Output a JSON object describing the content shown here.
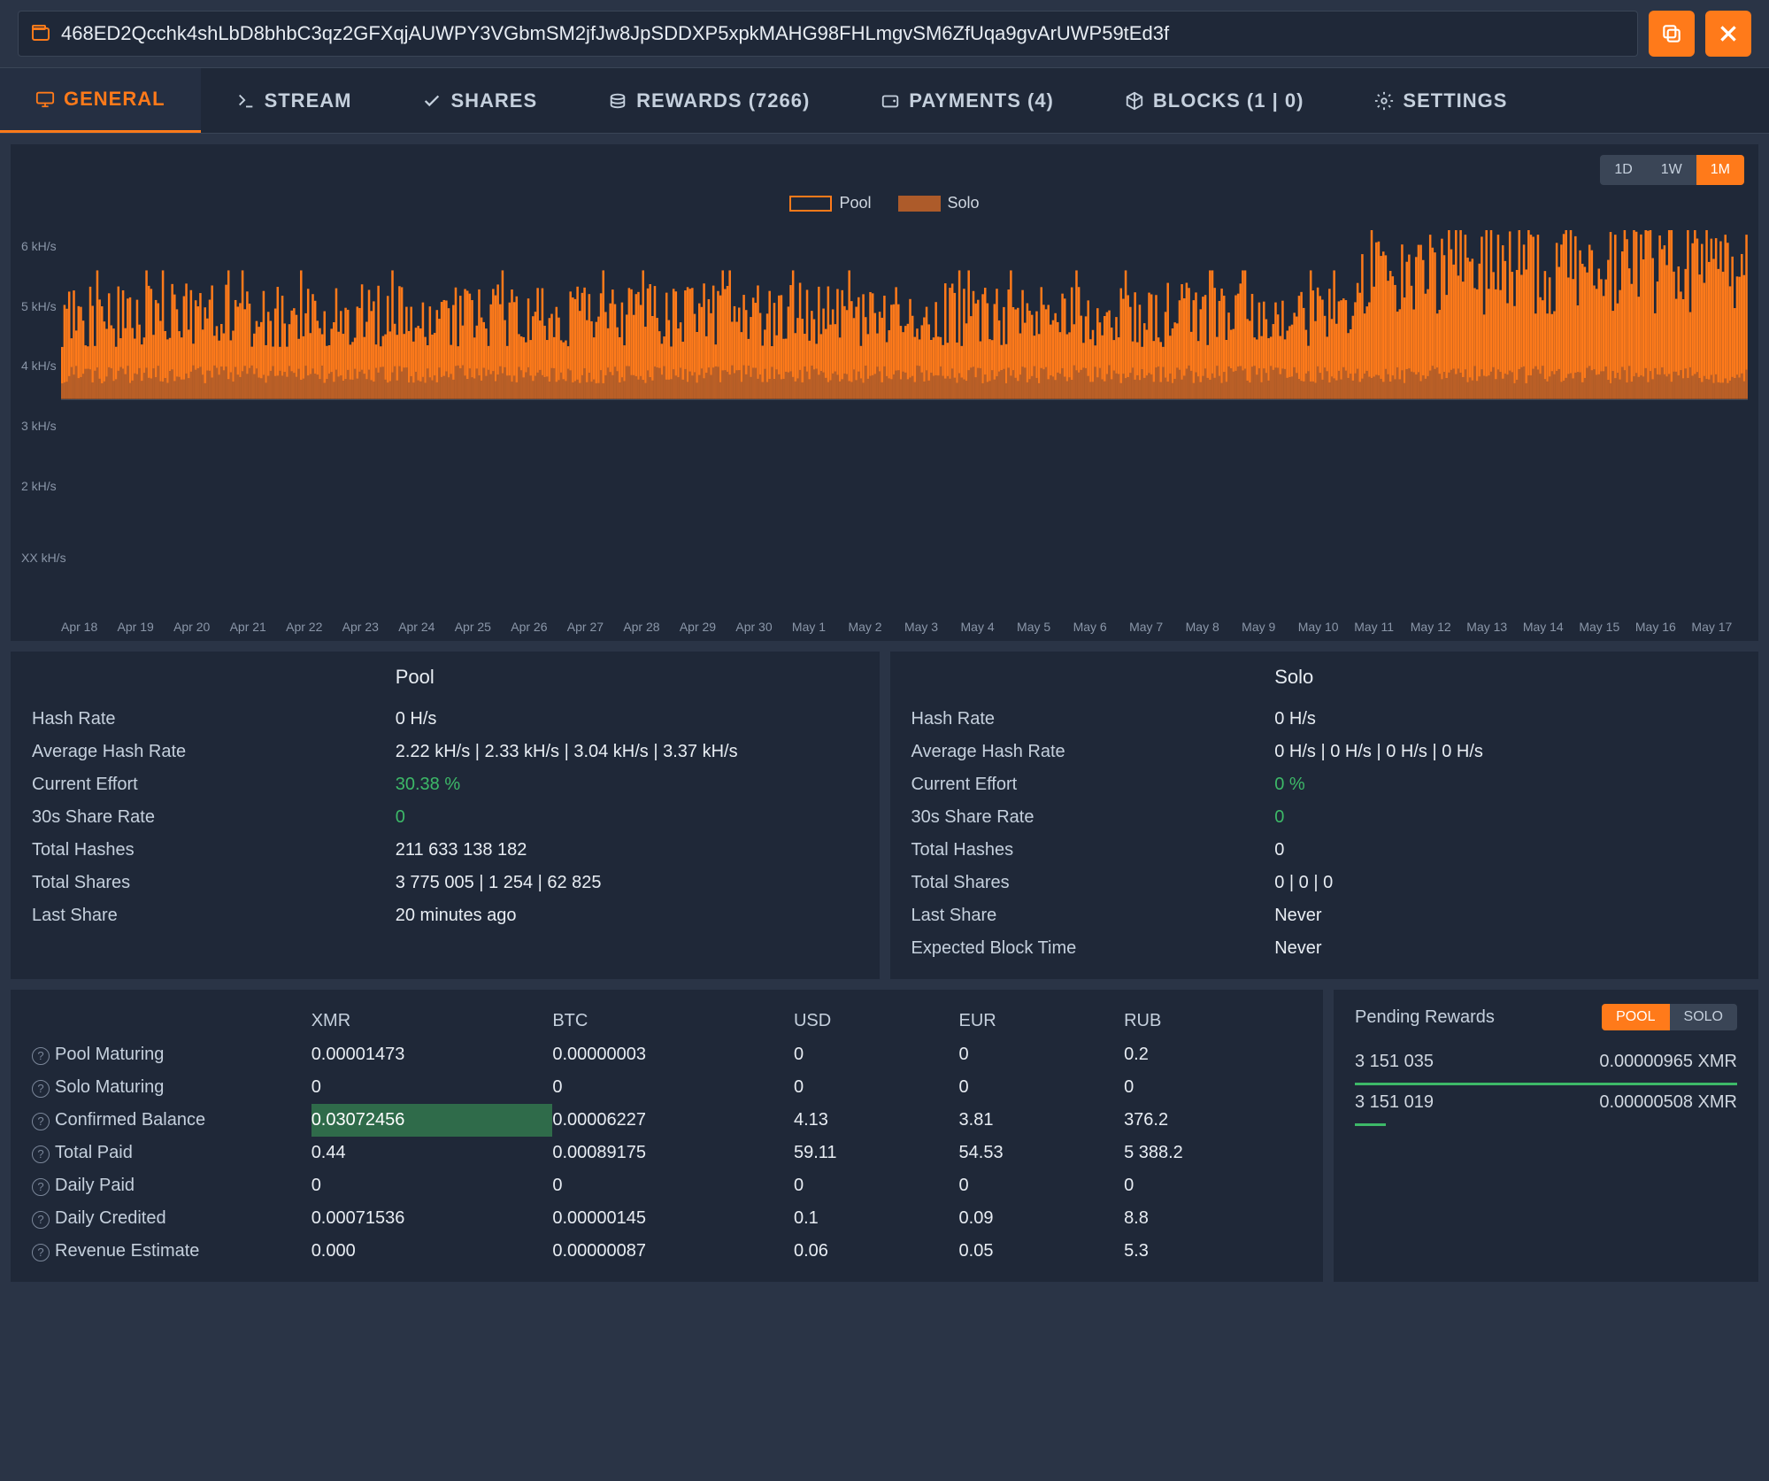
{
  "colors": {
    "accent": "#ff7a1a",
    "solo": "#ad5b2a",
    "bg_panel": "#1f2838",
    "green": "#3db968",
    "grid": "#3a4556",
    "text": "#c5d0dd"
  },
  "address": "468ED2Qcchk4shLbD8bhbC3qz2GFXqjAUWPY3VGbmSM2jfJw8JpSDDXP5xpkMAHG98FHLmgvSM6ZfUqa9gvArUWP59tEd3f",
  "tabs": [
    {
      "label": "GENERAL",
      "icon": "monitor"
    },
    {
      "label": "STREAM",
      "icon": "terminal"
    },
    {
      "label": "SHARES",
      "icon": "check"
    },
    {
      "label": "REWARDS (7266)",
      "icon": "coins"
    },
    {
      "label": "PAYMENTS (4)",
      "icon": "wallet"
    },
    {
      "label": "BLOCKS (1 | 0)",
      "icon": "cube"
    },
    {
      "label": "SETTINGS",
      "icon": "gear"
    }
  ],
  "active_tab": 0,
  "time_range": {
    "options": [
      "1D",
      "1W",
      "1M"
    ],
    "active": 2
  },
  "chart": {
    "y_label_unit": "kH/s",
    "y_ticks": [
      "6 kH/s",
      "5 kH/s",
      "4 kH/s",
      "3 kH/s",
      "2 kH/s",
      "XX kH/s"
    ],
    "y_max": 6.5,
    "legend": [
      {
        "label": "Pool",
        "color": "#ff7a1a"
      },
      {
        "label": "Solo",
        "color": "#ad5b2a"
      }
    ],
    "x_labels": [
      "Apr 18",
      "Apr 19",
      "Apr 20",
      "Apr 21",
      "Apr 22",
      "Apr 23",
      "Apr 24",
      "Apr 25",
      "Apr 26",
      "Apr 27",
      "Apr 28",
      "Apr 29",
      "Apr 30",
      "May 1",
      "May 2",
      "May 3",
      "May 4",
      "May 5",
      "May 6",
      "May 7",
      "May 8",
      "May 9",
      "May 10",
      "May 11",
      "May 12",
      "May 13",
      "May 14",
      "May 15",
      "May 16",
      "May 17"
    ],
    "series_pool_baseline": 2.0,
    "series_pool_noise": 2.5,
    "series_solo_baseline": 0.6,
    "series_solo_noise": 0.7,
    "spike_days": [
      23,
      24,
      25,
      26,
      27,
      28,
      29
    ],
    "spike_height": 5.5
  },
  "pool_stats": {
    "title": "Pool",
    "rows": [
      {
        "label": "Hash Rate",
        "value": "0 H/s"
      },
      {
        "label": "Average Hash Rate",
        "value": "2.22 kH/s | 2.33 kH/s | 3.04 kH/s | 3.37 kH/s"
      },
      {
        "label": "Current Effort",
        "value": "30.38 %",
        "green": true
      },
      {
        "label": "30s Share Rate",
        "value": "0",
        "green": true
      },
      {
        "label": "Total Hashes",
        "value": "211 633 138 182"
      },
      {
        "label": "Total Shares",
        "value": "3 775 005 | 1 254 | 62 825"
      },
      {
        "label": "Last Share",
        "value": "20 minutes ago"
      }
    ]
  },
  "solo_stats": {
    "title": "Solo",
    "rows": [
      {
        "label": "Hash Rate",
        "value": "0 H/s"
      },
      {
        "label": "Average Hash Rate",
        "value": "0 H/s | 0 H/s | 0 H/s | 0 H/s"
      },
      {
        "label": "Current Effort",
        "value": "0 %",
        "green": true
      },
      {
        "label": "30s Share Rate",
        "value": "0",
        "green": true
      },
      {
        "label": "Total Hashes",
        "value": "0"
      },
      {
        "label": "Total Shares",
        "value": "0 | 0 | 0"
      },
      {
        "label": "Last Share",
        "value": "Never"
      },
      {
        "label": "Expected Block Time",
        "value": "Never"
      }
    ]
  },
  "currency_table": {
    "headers": [
      "",
      "XMR",
      "BTC",
      "USD",
      "EUR",
      "RUB"
    ],
    "rows": [
      {
        "label": "Pool Maturing",
        "cells": [
          "0.00001473",
          "0.00000003",
          "0",
          "0",
          "0.2"
        ]
      },
      {
        "label": "Solo Maturing",
        "cells": [
          "0",
          "0",
          "0",
          "0",
          "0"
        ]
      },
      {
        "label": "Confirmed Balance",
        "cells": [
          "0.03072456",
          "0.00006227",
          "4.13",
          "3.81",
          "376.2"
        ],
        "highlight_cell": 0
      },
      {
        "label": "Total Paid",
        "cells": [
          "0.44",
          "0.00089175",
          "59.11",
          "54.53",
          "5 388.2"
        ]
      },
      {
        "label": "Daily Paid",
        "cells": [
          "0",
          "0",
          "0",
          "0",
          "0"
        ]
      },
      {
        "label": "Daily Credited",
        "cells": [
          "0.00071536",
          "0.00000145",
          "0.1",
          "0.09",
          "8.8"
        ]
      },
      {
        "label": "Revenue Estimate",
        "cells": [
          "0.000",
          "0.00000087",
          "0.06",
          "0.05",
          "5.3"
        ]
      }
    ],
    "col_widths": [
      "22%",
      "19%",
      "19%",
      "13%",
      "13%",
      "14%"
    ]
  },
  "pending_rewards": {
    "title": "Pending Rewards",
    "toggle": [
      "POOL",
      "SOLO"
    ],
    "active_toggle": 0,
    "rows": [
      {
        "id": "3 151 035",
        "amount": "0.00000965 XMR",
        "bar_pct": 100,
        "bar_color": "#3db968"
      },
      {
        "id": "3 151 019",
        "amount": "0.00000508 XMR",
        "bar_pct": 8,
        "bar_color": "#3db968"
      }
    ]
  }
}
